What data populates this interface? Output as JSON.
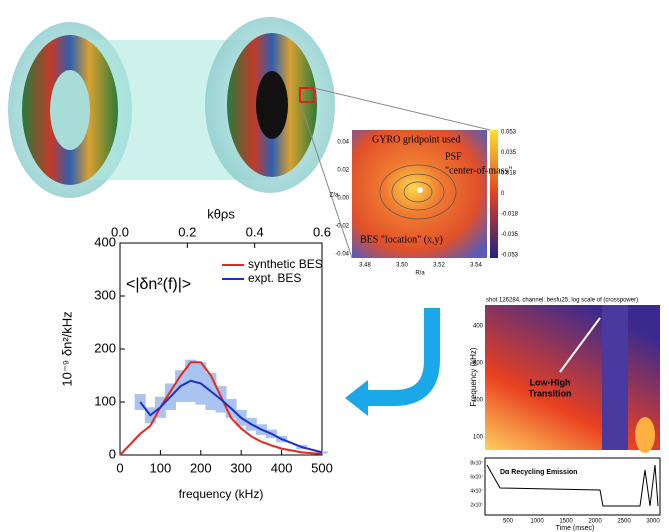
{
  "chart_data": {
    "type": "line",
    "x_label": "frequency (kHz)",
    "y_label": "10⁻⁹ δn²/kHz",
    "x2_label": "kθρs",
    "annotation": "<|δn²(f)|>",
    "x": [
      0,
      25,
      50,
      75,
      100,
      125,
      150,
      175,
      200,
      225,
      250,
      275,
      300,
      325,
      350,
      375,
      400,
      450,
      500
    ],
    "series": [
      {
        "name": "synthetic BES",
        "color": "#e8281e",
        "values": [
          0,
          20,
          40,
          55,
          90,
          120,
          150,
          175,
          175,
          150,
          110,
          70,
          50,
          35,
          25,
          18,
          12,
          5,
          2
        ]
      },
      {
        "name": "expt. BES",
        "color": "#1a2fd0",
        "band_color": "#a9c4f0",
        "values": [
          null,
          null,
          100,
          75,
          90,
          110,
          130,
          140,
          135,
          120,
          105,
          88,
          70,
          58,
          48,
          40,
          30,
          15,
          5
        ],
        "error": [
          null,
          null,
          15,
          15,
          20,
          25,
          30,
          40,
          40,
          35,
          25,
          18,
          15,
          12,
          10,
          8,
          6,
          4,
          2
        ]
      }
    ],
    "xlim": [
      0,
      500
    ],
    "xticks": [
      0,
      100,
      200,
      300,
      400,
      500
    ],
    "ylim": [
      0,
      400
    ],
    "yticks": [
      0,
      100,
      200,
      300,
      400
    ],
    "x2lim": [
      0,
      0.6
    ],
    "x2ticks": [
      {
        "value": 0,
        "label": "0.0"
      },
      0.2,
      0.4,
      0.6
    ],
    "legend": "upper right"
  },
  "inset_psf": {
    "labels": [
      "GYRO gridpoint used",
      "PSF",
      "\"center-of-mass\"",
      "BES \"location\" (x,y)"
    ],
    "yticks": [
      "0.04",
      "0.02",
      "0.00",
      "-0.02",
      "-0.04"
    ],
    "xticks": [
      "3.48",
      "3.50",
      "3.52",
      "3.54"
    ],
    "colorbar": [
      "0.053",
      "0.035",
      "0.018",
      "0",
      "-0.018",
      "-0.035",
      "-0.053"
    ],
    "x_label": "R/a",
    "y_label": "Z/a"
  },
  "inset_spectrogram": {
    "title": "shot 126284, channel: besfu25, log scale of (crosspower)",
    "y_label": "Frequency (kHz)",
    "yticks": [
      "400",
      "300",
      "200",
      "100"
    ],
    "annotation": [
      "Low-High",
      "Transition"
    ],
    "lower_title": "Dα Recycling Emission",
    "lower_yticks": [
      "8x10⁷",
      "6x10⁷",
      "4x10⁷",
      "2x10⁷"
    ],
    "xticks": [
      "500",
      "1000",
      "1500",
      "2000",
      "2500",
      "3000"
    ],
    "x_label": "Time (msec)"
  }
}
